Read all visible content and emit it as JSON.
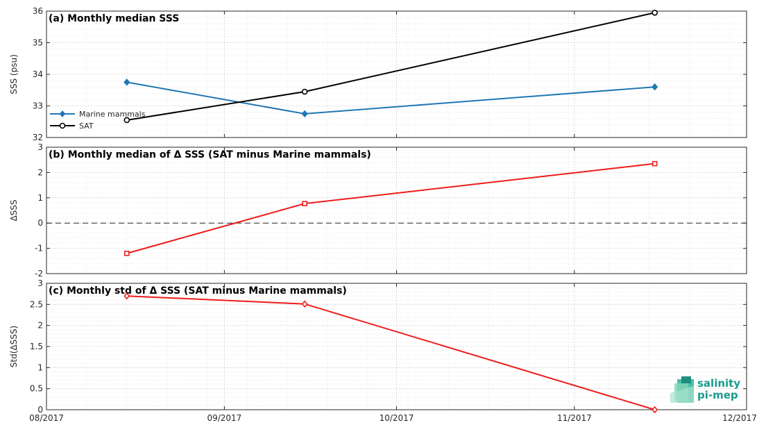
{
  "chart_data": [
    {
      "type": "line",
      "title": "(a) Monthly median SSS",
      "ylabel": "SSS (psu)",
      "xlabel": "",
      "x": [
        "2017-08-15",
        "2017-09-15",
        "2017-11-15"
      ],
      "ylim": [
        32,
        36
      ],
      "yticks": [
        32,
        33,
        34,
        35,
        36
      ],
      "grid": true,
      "legend_position": "bottom-left",
      "series": [
        {
          "name": "Marine mammals",
          "values": [
            33.75,
            32.75,
            33.6
          ],
          "color": "#1f77b4",
          "marker": "diamond"
        },
        {
          "name": "SAT",
          "values": [
            32.55,
            33.45,
            35.95
          ],
          "color": "#000000",
          "marker": "circle"
        }
      ]
    },
    {
      "type": "line",
      "title": "(b) Monthly median of Δ SSS (SAT minus Marine mammals)",
      "ylabel": "ΔSSS",
      "xlabel": "",
      "x": [
        "2017-08-15",
        "2017-09-15",
        "2017-11-15"
      ],
      "ylim": [
        -2,
        3
      ],
      "yticks": [
        -2,
        -1,
        0,
        1,
        2,
        3
      ],
      "grid": true,
      "reference_line": 0,
      "series": [
        {
          "values": [
            -1.2,
            0.77,
            2.35
          ],
          "color": "#ee1c1c",
          "marker": "square"
        }
      ]
    },
    {
      "type": "line",
      "title": "(c) Monthly std of Δ SSS (SAT minus Marine mammals)",
      "ylabel": "Std(ΔSSS)",
      "xlabel": "",
      "x": [
        "2017-08-15",
        "2017-09-15",
        "2017-11-15"
      ],
      "ylim": [
        0,
        3
      ],
      "yticks": [
        0,
        0.5,
        1,
        1.5,
        2,
        2.5,
        3
      ],
      "grid": true,
      "series": [
        {
          "values": [
            2.7,
            2.51,
            0.0
          ],
          "color": "#ee1c1c",
          "marker": "diamond"
        }
      ]
    }
  ],
  "xaxis": {
    "range": [
      "2017-08-01",
      "2017-12-01"
    ],
    "ticks": [
      {
        "date": "2017-08-01",
        "label": "08/2017"
      },
      {
        "date": "2017-09-01",
        "label": "09/2017"
      },
      {
        "date": "2017-10-01",
        "label": "10/2017"
      },
      {
        "date": "2017-11-01",
        "label": "11/2017"
      },
      {
        "date": "2017-12-01",
        "label": "12/2017"
      }
    ]
  },
  "logo": {
    "line1": "salinity",
    "line2": "pi-mep"
  }
}
